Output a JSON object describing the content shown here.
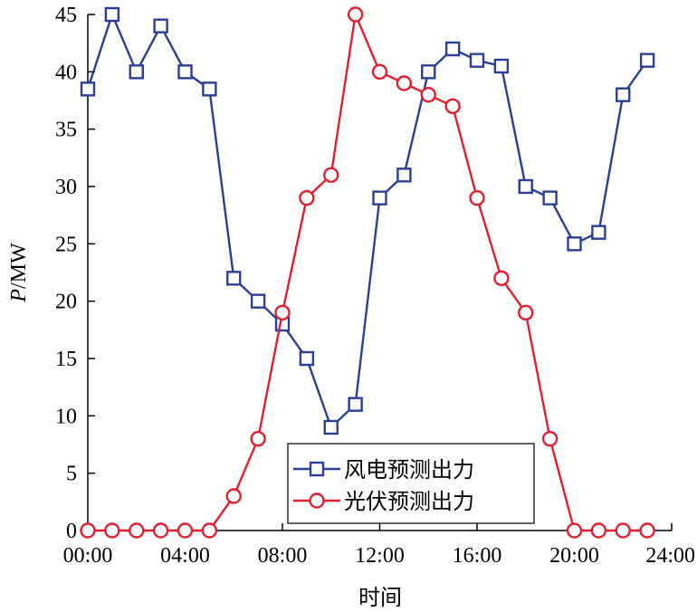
{
  "chart_data": {
    "type": "line",
    "xlabel": "时间",
    "ylabel_italic": "P",
    "ylabel_rest": "/MW",
    "x": [
      0,
      1,
      2,
      3,
      4,
      5,
      6,
      7,
      8,
      9,
      10,
      11,
      12,
      13,
      14,
      15,
      16,
      17,
      18,
      19,
      20,
      21,
      22,
      23
    ],
    "xlim": [
      0,
      24
    ],
    "ylim": [
      0,
      45
    ],
    "xticks": [
      0,
      4,
      8,
      12,
      16,
      20,
      24
    ],
    "xtick_labels": [
      "00:00",
      "04:00",
      "08:00",
      "12:00",
      "16:00",
      "20:00",
      "24:00"
    ],
    "yticks": [
      0,
      5,
      10,
      15,
      20,
      25,
      30,
      35,
      40,
      45
    ],
    "ytick_labels": [
      "0",
      "5",
      "10",
      "15",
      "20",
      "25",
      "30",
      "35",
      "40",
      "45"
    ],
    "grid": false,
    "legend_position": "bottom-center",
    "series": [
      {
        "name": "风电预测出力",
        "color": "#2a3f96",
        "marker": "square",
        "values": [
          38.5,
          45,
          40,
          44,
          40,
          38.5,
          22,
          20,
          18,
          15,
          9,
          11,
          29,
          31,
          40,
          42,
          41,
          40.5,
          30,
          29,
          25,
          26,
          38,
          41
        ]
      },
      {
        "name": "光伏预测出力",
        "color": "#e0202e",
        "marker": "circle",
        "values": [
          0,
          0,
          0,
          0,
          0,
          0,
          3,
          8,
          19,
          29,
          31,
          45,
          40,
          39,
          38,
          37,
          29,
          22,
          19,
          8,
          0,
          0,
          0,
          0
        ]
      }
    ]
  }
}
